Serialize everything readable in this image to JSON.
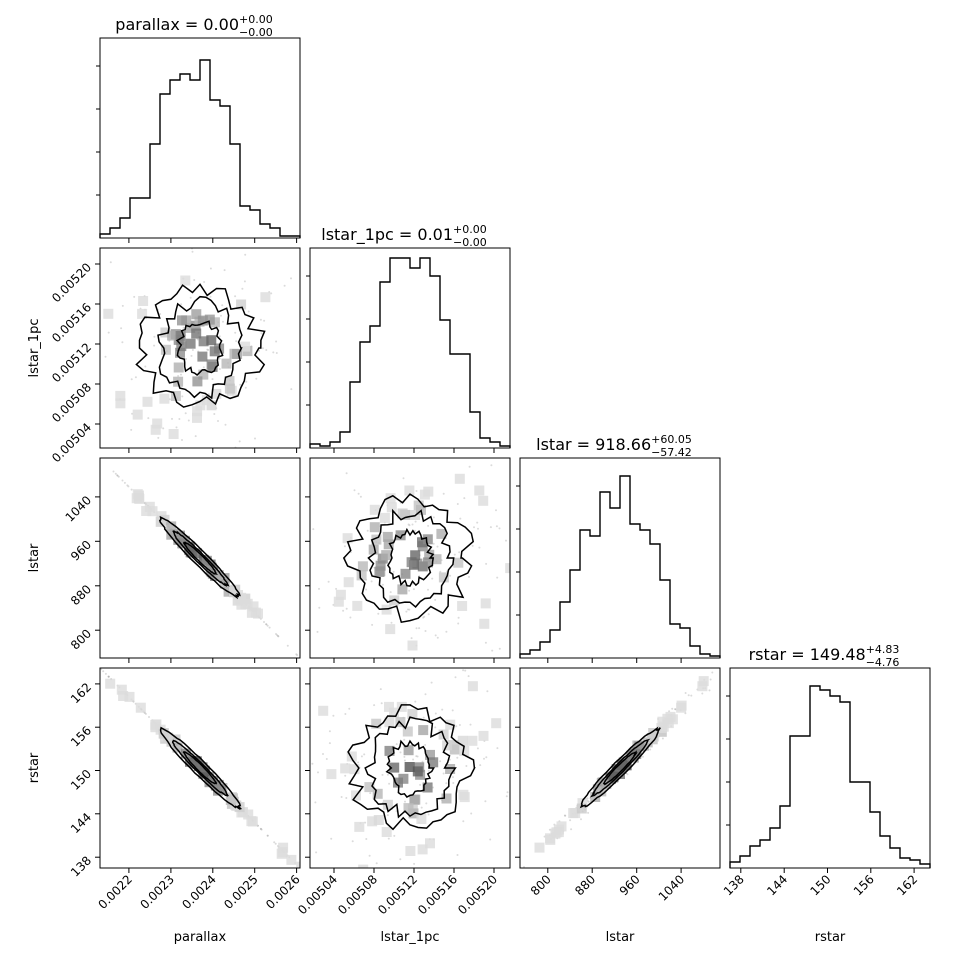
{
  "chart_data": {
    "type": "corner",
    "parameters": [
      "parallax",
      "lstar_1pc",
      "lstar",
      "rstar"
    ],
    "axis_labels": [
      "parallax",
      "lstar_1pc",
      "lstar",
      "rstar"
    ],
    "titles": [
      {
        "name": "parallax",
        "value": "0.00",
        "plus": "+0.00",
        "minus": "−0.00"
      },
      {
        "name": "lstar_1pc",
        "value": "0.01",
        "plus": "+0.00",
        "minus": "−0.00"
      },
      {
        "name": "lstar",
        "value": "918.66",
        "plus": "+60.05",
        "minus": "−57.42"
      },
      {
        "name": "rstar",
        "value": "149.48",
        "plus": "+4.83",
        "minus": "−4.76"
      }
    ],
    "ranges": [
      [
        0.002131,
        0.002608
      ],
      [
        0.005016,
        0.005216
      ],
      [
        750,
        1110
      ],
      [
        136.5,
        164.2
      ]
    ],
    "ticks": [
      {
        "values": [
          0.0022,
          0.0023,
          0.0024,
          0.0025,
          0.0026
        ],
        "labels": [
          "0.0022",
          "0.0023",
          "0.0024",
          "0.0025",
          "0.0026"
        ]
      },
      {
        "values": [
          0.00504,
          0.00508,
          0.00512,
          0.00516,
          0.0052
        ],
        "labels": [
          "0.00504",
          "0.00508",
          "0.00512",
          "0.00516",
          "0.00520"
        ]
      },
      {
        "values": [
          800,
          880,
          960,
          1040
        ],
        "labels": [
          "800",
          "880",
          "960",
          "1040"
        ]
      },
      {
        "values": [
          138,
          144,
          150,
          156,
          162
        ],
        "labels": [
          "138",
          "144",
          "150",
          "156",
          "162"
        ]
      }
    ],
    "histograms": [
      [
        0.02,
        0.05,
        0.1,
        0.2,
        0.2,
        0.47,
        0.72,
        0.79,
        0.82,
        0.79,
        0.89,
        0.69,
        0.66,
        0.47,
        0.16,
        0.14,
        0.07,
        0.05,
        0.01,
        0.01
      ],
      [
        0.02,
        0.01,
        0.03,
        0.08,
        0.33,
        0.53,
        0.61,
        0.83,
        0.95,
        0.95,
        0.9,
        0.95,
        0.86,
        0.64,
        0.47,
        0.47,
        0.18,
        0.05,
        0.03,
        0.01
      ],
      [
        0.02,
        0.04,
        0.08,
        0.14,
        0.28,
        0.44,
        0.64,
        0.61,
        0.83,
        0.75,
        0.91,
        0.67,
        0.64,
        0.57,
        0.39,
        0.17,
        0.15,
        0.06,
        0.02,
        0.01
      ],
      [
        0.03,
        0.06,
        0.11,
        0.14,
        0.2,
        0.31,
        0.66,
        0.66,
        0.91,
        0.89,
        0.86,
        0.83,
        0.43,
        0.43,
        0.28,
        0.16,
        0.1,
        0.05,
        0.04,
        0.02
      ]
    ],
    "pairs": [
      {
        "x": "parallax",
        "y": "lstar_1pc",
        "correlation": 0.0
      },
      {
        "x": "parallax",
        "y": "lstar",
        "correlation": -0.99
      },
      {
        "x": "lstar_1pc",
        "y": "lstar",
        "correlation": 0.0
      },
      {
        "x": "parallax",
        "y": "rstar",
        "correlation": -0.995
      },
      {
        "x": "lstar_1pc",
        "y": "rstar",
        "correlation": 0.0
      },
      {
        "x": "lstar",
        "y": "rstar",
        "correlation": 0.995
      }
    ]
  }
}
